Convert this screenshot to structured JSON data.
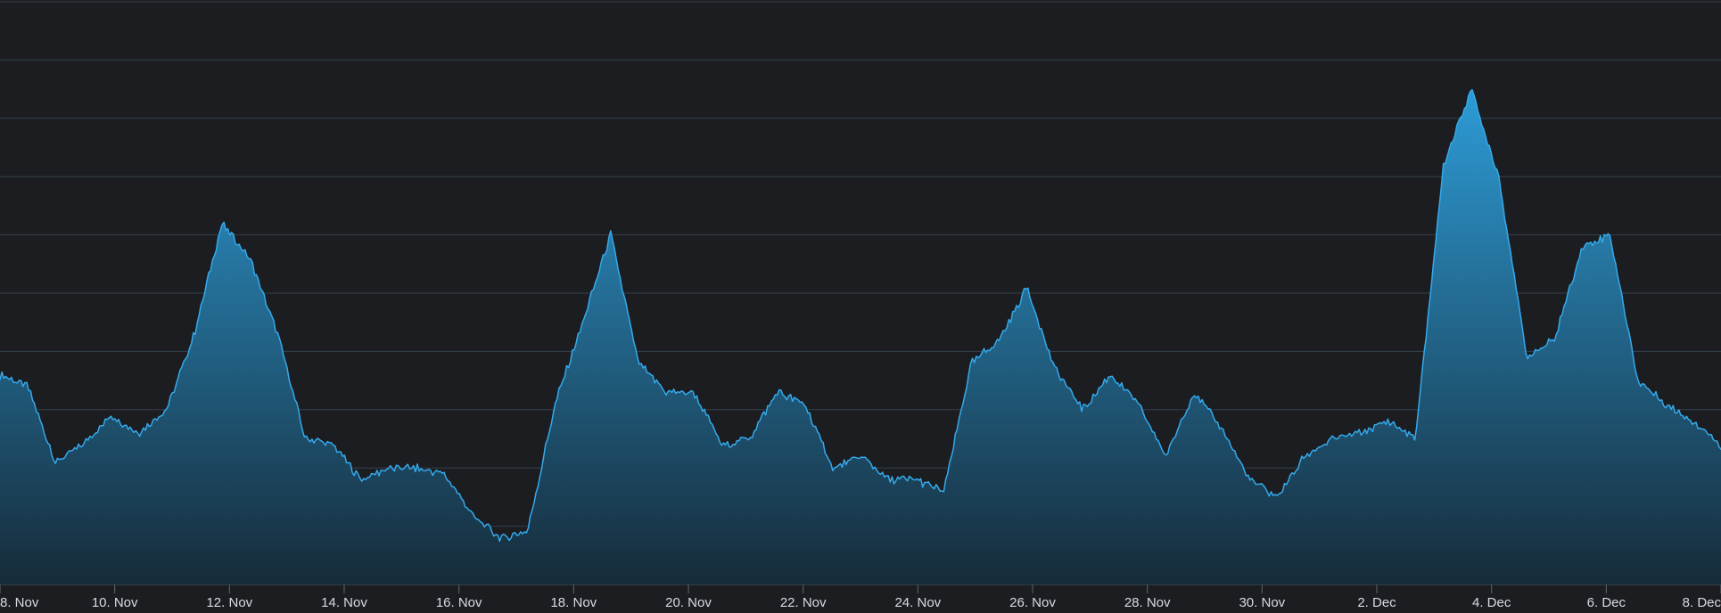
{
  "chart_data": {
    "type": "area",
    "title": "",
    "xlabel": "",
    "ylabel": "",
    "grid": true,
    "legend": "none",
    "x_tick_labels": [
      "8. Nov",
      "10. Nov",
      "12. Nov",
      "14. Nov",
      "16. Nov",
      "18. Nov",
      "20. Nov",
      "22. Nov",
      "24. Nov",
      "26. Nov",
      "28. Nov",
      "30. Nov",
      "2. Dec",
      "4. Dec",
      "6. Dec",
      "8. Dec"
    ],
    "y_range": [
      0,
      100
    ],
    "series": [
      {
        "x": [
          "8 Nov",
          "9 Nov",
          "9 Nov 12h",
          "10 Nov",
          "10 Nov 12h",
          "11 Nov",
          "11 Nov 12h",
          "11 Nov 18h",
          "12 Nov",
          "12 Nov 12h",
          "13 Nov",
          "13 Nov 12h",
          "14 Nov",
          "14 Nov 12h",
          "15 Nov",
          "15 Nov 12h",
          "16 Nov",
          "16 Nov 12h",
          "17 Nov",
          "17 Nov 12h",
          "18 Nov",
          "18 Nov 12h",
          "18 Nov 18h",
          "19 Nov",
          "19 Nov 12h",
          "20 Nov",
          "20 Nov 12h",
          "21 Nov",
          "21 Nov 12h",
          "22 Nov",
          "22 Nov 12h",
          "23 Nov",
          "23 Nov 12h",
          "24 Nov",
          "24 Nov 12h",
          "25 Nov",
          "25 Nov 12h",
          "25 Nov 18h",
          "26 Nov",
          "26 Nov 12h",
          "27 Nov",
          "27 Nov 12h",
          "28 Nov",
          "28 Nov 12h",
          "29 Nov",
          "29 Nov 12h",
          "30 Nov",
          "30 Nov 12h",
          "1 Dec",
          "1 Dec 12h",
          "2 Dec",
          "2 Dec 12h",
          "3 Dec",
          "3 Dec 12h",
          "4 Dec",
          "4 Dec 12h",
          "5 Dec",
          "5 Dec 12h",
          "6 Dec",
          "6 Dec 12h",
          "7 Dec",
          "7 Dec 12h",
          "8 Dec"
        ],
        "values": [
          36,
          34,
          21,
          24,
          29,
          26,
          30,
          43,
          62,
          56,
          43,
          25,
          24,
          18,
          20,
          20,
          19,
          12,
          8,
          9,
          31,
          45,
          60,
          38,
          33,
          33,
          24,
          25,
          33,
          31,
          20,
          22,
          18,
          18,
          16,
          38,
          42,
          51,
          37,
          30,
          36,
          31,
          22,
          33,
          27,
          18,
          15,
          22,
          25,
          26,
          28,
          25,
          72,
          85,
          70,
          39,
          42,
          58,
          60,
          35,
          31,
          28,
          24
        ]
      }
    ]
  },
  "colors": {
    "background": "#1b1d21",
    "line": "#35a9eb",
    "fill_top": "#2ea2df",
    "fill_bottom": "#162c3b"
  }
}
